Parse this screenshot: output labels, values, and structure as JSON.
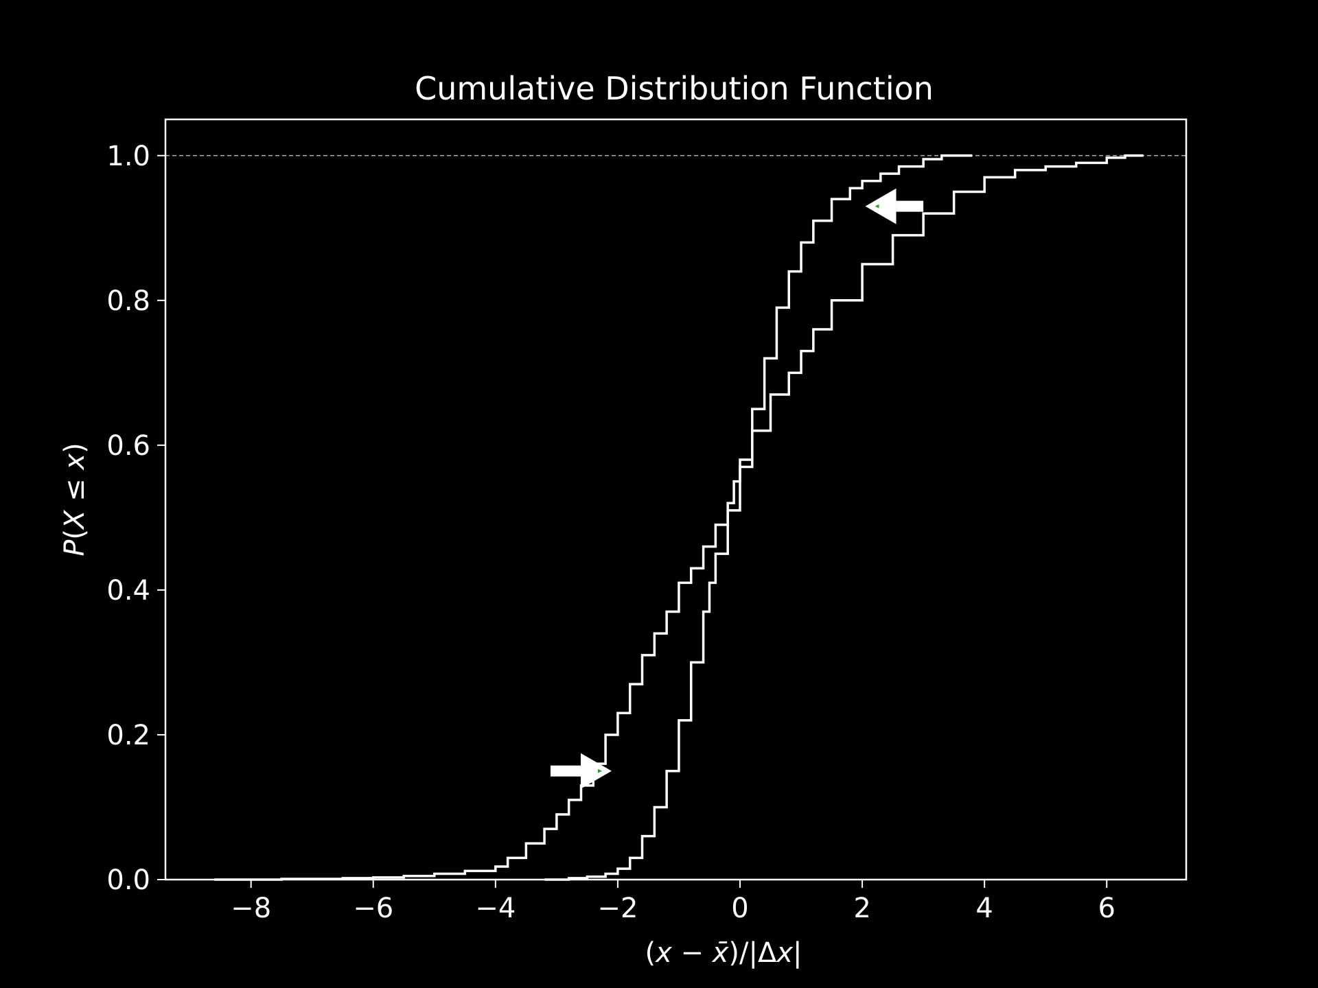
{
  "chart_data": {
    "type": "line",
    "title": "Cumulative Distribution Function",
    "xlabel_parts": [
      "(",
      "x",
      " − ",
      "x̄",
      ")/|Δ",
      "x",
      "|"
    ],
    "ylabel_parts": [
      "P",
      "(",
      "X",
      " ≤ ",
      "x",
      ")"
    ],
    "xlim": [
      -9.4,
      7.3
    ],
    "ylim": [
      0,
      1.05
    ],
    "xticks": [
      -8,
      -6,
      -4,
      -2,
      0,
      2,
      4,
      6
    ],
    "xtick_labels": [
      "−8",
      "−6",
      "−4",
      "−2",
      "0",
      "2",
      "4",
      "6"
    ],
    "yticks": [
      0.0,
      0.2,
      0.4,
      0.6,
      0.8,
      1.0
    ],
    "ytick_labels": [
      "0.0",
      "0.2",
      "0.4",
      "0.6",
      "0.8",
      "1.0"
    ],
    "grid": false,
    "reference_line": {
      "y": 1.0,
      "style": "dashed"
    },
    "background": "#000000",
    "line_color": "#ffffff",
    "arrow_marker_color": "#2ca02c",
    "series": [
      {
        "x": [
          -8.6,
          -7.5,
          -6.5,
          -6.0,
          -5.5,
          -5.0,
          -4.5,
          -4.0,
          -3.8,
          -3.5,
          -3.2,
          -3.0,
          -2.8,
          -2.6,
          -2.4,
          -2.2,
          -2.0,
          -1.8,
          -1.6,
          -1.4,
          -1.2,
          -1.0,
          -0.8,
          -0.6,
          -0.4,
          -0.2,
          -0.1,
          0.0,
          0.2,
          0.4,
          0.6,
          0.8,
          1.0,
          1.2,
          1.5,
          1.8,
          2.0,
          2.3,
          2.6,
          3.0,
          3.3,
          3.5,
          3.8
        ],
        "y": [
          0.0,
          0.001,
          0.002,
          0.003,
          0.005,
          0.008,
          0.012,
          0.018,
          0.03,
          0.05,
          0.07,
          0.09,
          0.11,
          0.13,
          0.16,
          0.2,
          0.23,
          0.27,
          0.31,
          0.34,
          0.37,
          0.41,
          0.43,
          0.46,
          0.49,
          0.52,
          0.55,
          0.58,
          0.65,
          0.72,
          0.79,
          0.84,
          0.88,
          0.91,
          0.94,
          0.955,
          0.965,
          0.975,
          0.985,
          0.995,
          1.0,
          1.0,
          1.0
        ]
      },
      {
        "x": [
          -3.2,
          -2.8,
          -2.5,
          -2.2,
          -2.0,
          -1.8,
          -1.6,
          -1.4,
          -1.2,
          -1.0,
          -0.8,
          -0.6,
          -0.5,
          -0.4,
          -0.2,
          0.0,
          0.2,
          0.5,
          0.8,
          1.0,
          1.2,
          1.5,
          2.0,
          2.5,
          3.0,
          3.5,
          4.0,
          4.5,
          5.0,
          5.5,
          6.0,
          6.3,
          6.6
        ],
        "y": [
          0.0,
          0.002,
          0.004,
          0.008,
          0.015,
          0.03,
          0.06,
          0.1,
          0.15,
          0.22,
          0.3,
          0.37,
          0.41,
          0.45,
          0.51,
          0.57,
          0.62,
          0.67,
          0.7,
          0.73,
          0.76,
          0.8,
          0.85,
          0.89,
          0.92,
          0.95,
          0.97,
          0.98,
          0.985,
          0.99,
          0.997,
          1.0,
          1.0
        ]
      }
    ],
    "arrows": [
      {
        "from": [
          -3.1,
          0.15
        ],
        "to": [
          -2.1,
          0.15
        ],
        "direction": "right"
      },
      {
        "from": [
          3.0,
          0.93
        ],
        "to": [
          2.05,
          0.93
        ],
        "direction": "left"
      }
    ]
  }
}
